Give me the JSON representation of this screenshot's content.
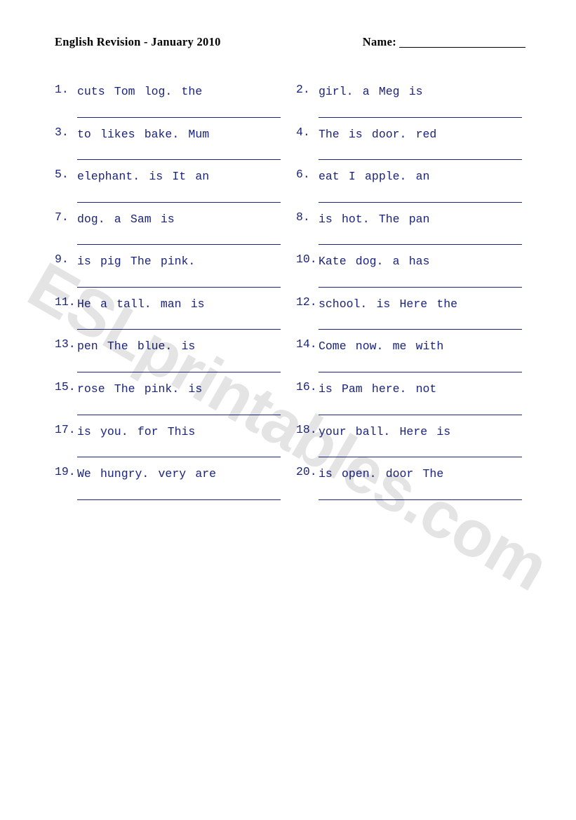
{
  "header": {
    "title": "English  Revision  -   January 2010",
    "name_label": "Name:"
  },
  "text_color": "#1a237e",
  "watermark": "ESLprintables.com",
  "items": [
    {
      "n": "1.",
      "words": "cuts   Tom   log.   the"
    },
    {
      "n": "2.",
      "words": "girl.   a   Meg   is"
    },
    {
      "n": "3.",
      "words": "to   likes   bake.   Mum"
    },
    {
      "n": "4.",
      "words": "The   is   door.  red"
    },
    {
      "n": "5.",
      "words": "elephant.   is   It   an"
    },
    {
      "n": "6.",
      "words": "eat   I   apple.   an"
    },
    {
      "n": "7.",
      "words": "dog.  a  Sam  is"
    },
    {
      "n": "8.",
      "words": "is   hot.   The   pan"
    },
    {
      "n": "9.",
      "words": "is   pig   The   pink."
    },
    {
      "n": "10.",
      "words": "Kate   dog.   a   has"
    },
    {
      "n": "11.",
      "words": "He  a  tall.   man  is"
    },
    {
      "n": "12.",
      "words": "school.  is   Here   the"
    },
    {
      "n": "13.",
      "words": "pen   The   blue.  is"
    },
    {
      "n": "14.",
      "words": "Come   now.   me   with"
    },
    {
      "n": "15.",
      "words": "rose   The   pink.   is"
    },
    {
      "n": "16.",
      "words": "is   Pam   here.   not"
    },
    {
      "n": "17.",
      "words": "is   you.   for   This"
    },
    {
      "n": "18.",
      "words": "your   ball.   Here   is"
    },
    {
      "n": "19.",
      "words": "We   hungry.   very   are"
    },
    {
      "n": "20.",
      "words": "is   open.   door   The"
    }
  ]
}
